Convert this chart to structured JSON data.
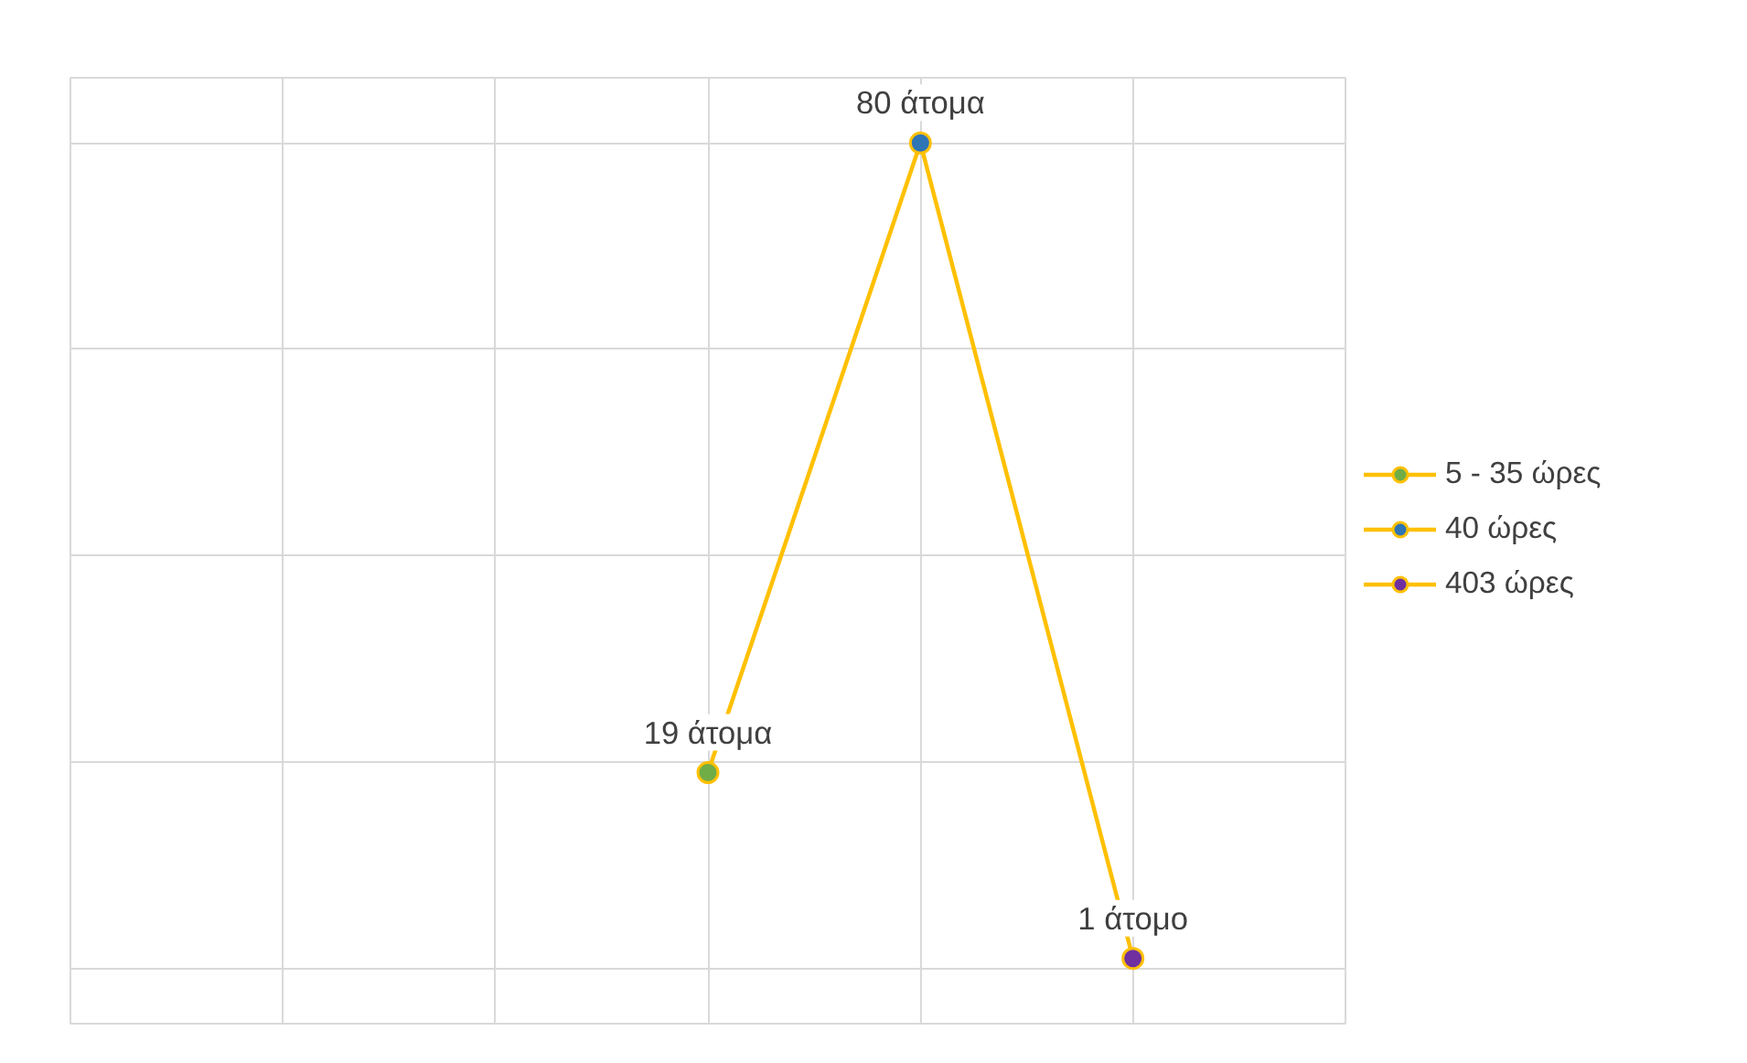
{
  "chart_data": {
    "type": "line",
    "categories": [
      null,
      null,
      null,
      null,
      null,
      null,
      null
    ],
    "series": [
      {
        "color": "#ffc000",
        "marker": "none",
        "values": [
          null,
          null,
          null,
          19,
          80,
          1,
          null
        ],
        "value_labels": [
          null,
          null,
          null,
          "19 άτομα",
          "80 άτομα",
          "1 άτομο",
          null
        ]
      },
      {
        "name": "5 - 35 ώρες",
        "color": "#70ad47",
        "values": [
          null,
          null,
          null,
          19,
          null,
          null,
          null
        ]
      },
      {
        "name": "40 ώρες",
        "color": "#2e75b6",
        "values": [
          null,
          null,
          null,
          null,
          80,
          null,
          null
        ]
      },
      {
        "name": "403 ώρες",
        "color": "#7030a0",
        "values": [
          null,
          null,
          null,
          null,
          null,
          1,
          null
        ]
      }
    ],
    "tick_labels": false,
    "grid": true,
    "legend": "right",
    "marker": "circle",
    "line_style": "solid"
  }
}
